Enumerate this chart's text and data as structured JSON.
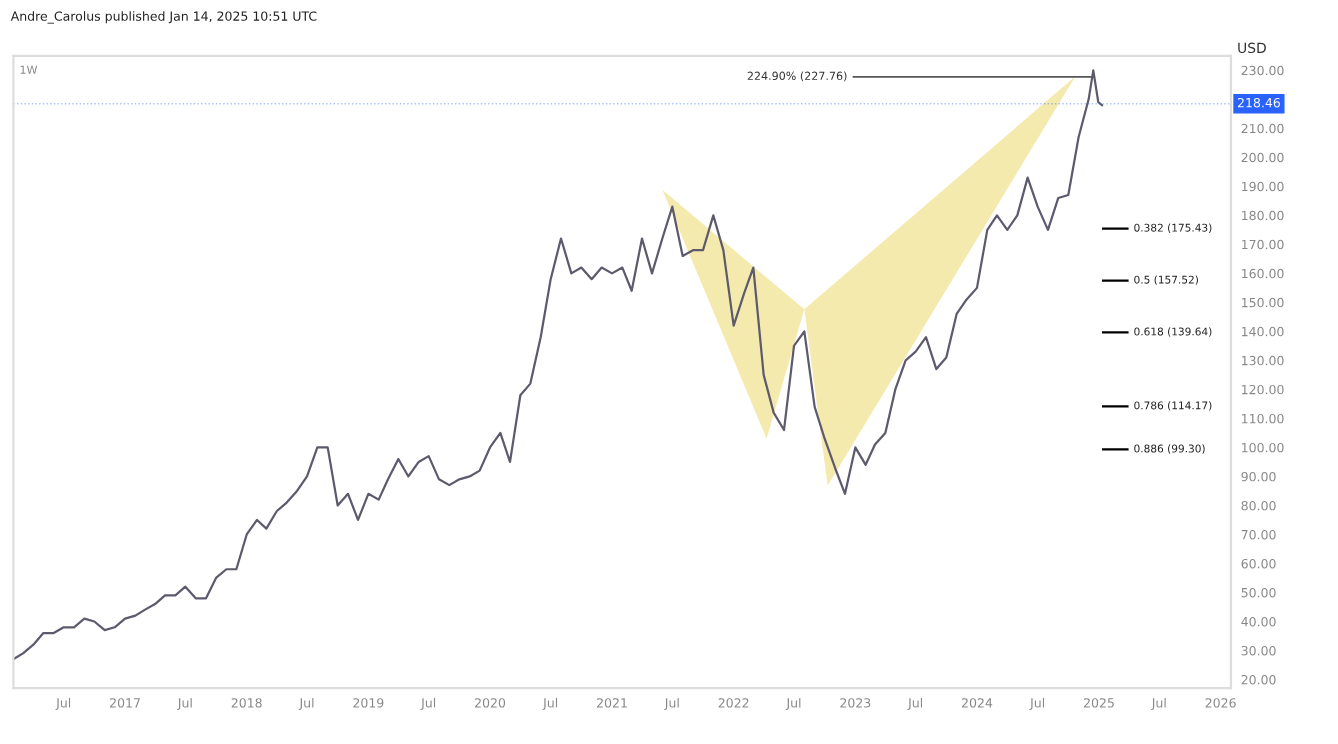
{
  "chart_data": {
    "type": "line",
    "ylabel": "USD",
    "annotations": [
      "Andre_Carolus published Jan 14, 2025 10:51 UTC",
      "1W"
    ],
    "xlim": [
      "2016-02-01",
      "2026-02-01"
    ],
    "xticks": [
      {
        "value": "2016-07-01",
        "label": "Jul"
      },
      {
        "value": "2017-01-01",
        "label": "2017"
      },
      {
        "value": "2017-07-01",
        "label": "Jul"
      },
      {
        "value": "2018-01-01",
        "label": "2018"
      },
      {
        "value": "2018-07-01",
        "label": "Jul"
      },
      {
        "value": "2019-01-01",
        "label": "2019"
      },
      {
        "value": "2019-07-01",
        "label": "Jul"
      },
      {
        "value": "2020-01-01",
        "label": "2020"
      },
      {
        "value": "2020-07-01",
        "label": "Jul"
      },
      {
        "value": "2021-01-01",
        "label": "2021"
      },
      {
        "value": "2021-07-01",
        "label": "Jul"
      },
      {
        "value": "2022-01-01",
        "label": "2022"
      },
      {
        "value": "2022-07-01",
        "label": "Jul"
      },
      {
        "value": "2023-01-01",
        "label": "2023"
      },
      {
        "value": "2023-07-01",
        "label": "Jul"
      },
      {
        "value": "2024-01-01",
        "label": "2024"
      },
      {
        "value": "2024-07-01",
        "label": "Jul"
      },
      {
        "value": "2025-01-01",
        "label": "2025"
      },
      {
        "value": "2025-07-01",
        "label": "Jul"
      },
      {
        "value": "2026-01-01",
        "label": "2026"
      }
    ],
    "ylim": [
      17,
      235
    ],
    "yticks": [
      {
        "value": 20,
        "label": "20.00"
      },
      {
        "value": 30,
        "label": "30.00"
      },
      {
        "value": 40,
        "label": "40.00"
      },
      {
        "value": 50,
        "label": "50.00"
      },
      {
        "value": 60,
        "label": "60.00"
      },
      {
        "value": 70,
        "label": "70.00"
      },
      {
        "value": 80,
        "label": "80.00"
      },
      {
        "value": 90,
        "label": "90.00"
      },
      {
        "value": 100,
        "label": "100.00"
      },
      {
        "value": 110,
        "label": "110.00"
      },
      {
        "value": 120,
        "label": "120.00"
      },
      {
        "value": 130,
        "label": "130.00"
      },
      {
        "value": 140,
        "label": "140.00"
      },
      {
        "value": 150,
        "label": "150.00"
      },
      {
        "value": 160,
        "label": "160.00"
      },
      {
        "value": 170,
        "label": "170.00"
      },
      {
        "value": 180,
        "label": "180.00"
      },
      {
        "value": 190,
        "label": "190.00"
      },
      {
        "value": 200,
        "label": "200.00"
      },
      {
        "value": 210,
        "label": "210.00"
      },
      {
        "value": 230,
        "label": "230.00"
      }
    ],
    "grid": false,
    "series": [
      {
        "type": "area",
        "color": "#f3e6a0",
        "x": [
          "2021-06-01",
          "2022-04-10",
          "2022-08-01"
        ],
        "values": [
          188.8,
          103,
          147.6
        ]
      },
      {
        "type": "area",
        "color": "#f3e6a0",
        "x": [
          "2022-08-01",
          "2022-10-10",
          "2024-10-23"
        ],
        "values": [
          147.6,
          86.8,
          228
        ]
      },
      {
        "color": "#5d5a6e",
        "x": [
          "2016-02",
          "2016-03",
          "2016-04",
          "2016-05",
          "2016-06",
          "2016-07",
          "2016-08",
          "2016-09",
          "2016-10",
          "2016-11",
          "2016-12",
          "2017-01",
          "2017-02",
          "2017-03",
          "2017-04",
          "2017-05",
          "2017-06",
          "2017-07",
          "2017-08",
          "2017-09",
          "2017-10",
          "2017-11",
          "2017-12",
          "2018-01",
          "2018-02",
          "2018-03",
          "2018-04",
          "2018-05",
          "2018-06",
          "2018-07",
          "2018-08",
          "2018-09",
          "2018-10",
          "2018-11",
          "2018-12",
          "2019-01",
          "2019-02",
          "2019-03",
          "2019-04",
          "2019-05",
          "2019-06",
          "2019-07",
          "2019-08",
          "2019-09",
          "2019-10",
          "2019-11",
          "2019-12",
          "2020-01",
          "2020-02",
          "2020-03",
          "2020-04",
          "2020-05",
          "2020-06",
          "2020-07",
          "2020-08",
          "2020-09",
          "2020-10",
          "2020-11",
          "2020-12",
          "2021-01",
          "2021-02",
          "2021-03",
          "2021-04",
          "2021-05",
          "2021-06",
          "2021-07",
          "2021-08",
          "2021-09",
          "2021-10",
          "2021-11",
          "2021-12",
          "2022-01",
          "2022-02",
          "2022-03",
          "2022-04",
          "2022-05",
          "2022-06",
          "2022-07",
          "2022-08",
          "2022-09",
          "2022-10",
          "2022-11",
          "2022-12",
          "2023-01",
          "2023-02",
          "2023-03",
          "2023-04",
          "2023-05",
          "2023-06",
          "2023-07",
          "2023-08",
          "2023-09",
          "2023-10",
          "2023-11",
          "2023-12",
          "2024-01",
          "2024-02",
          "2024-03",
          "2024-04",
          "2024-05",
          "2024-06",
          "2024-07",
          "2024-08",
          "2024-09",
          "2024-10",
          "2024-11",
          "2024-12",
          "2024-12-15",
          "2024-12-30",
          "2025-01-10"
        ],
        "values": [
          27,
          29,
          32,
          36,
          36,
          38,
          38,
          41,
          40,
          37,
          38,
          41,
          42,
          44,
          46,
          49,
          49,
          52,
          48,
          48,
          55,
          58,
          58,
          70,
          75,
          72,
          78,
          81,
          85,
          90,
          100,
          100,
          80,
          84,
          75,
          84,
          82,
          89,
          96,
          90,
          95,
          97,
          89,
          87,
          89,
          90,
          92,
          100,
          105,
          95,
          118,
          122,
          138,
          158,
          172,
          160,
          162,
          158,
          162,
          160,
          162,
          154,
          172,
          160,
          172,
          183,
          166,
          168,
          168,
          180,
          168,
          142,
          153,
          162,
          125,
          112,
          106,
          135,
          140,
          114,
          103,
          93,
          84,
          100,
          94,
          101,
          105,
          120,
          130,
          133,
          138,
          127,
          131,
          146,
          151,
          155,
          175,
          180,
          175,
          180,
          193,
          183,
          175,
          186,
          187,
          207,
          220,
          230,
          219,
          218
        ]
      }
    ],
    "ref_lines": [
      {
        "axis": "y",
        "value": 227.76,
        "label": "224.90% (227.76)",
        "color": "#555555"
      },
      {
        "axis": "y",
        "value": 218.46,
        "label": "218.46",
        "color": "#2962ff",
        "line_style": "dotted"
      },
      {
        "axis": "y",
        "value": 175.43,
        "label": "0.382 (175.43)",
        "color": "#000000"
      },
      {
        "axis": "y",
        "value": 157.52,
        "label": "0.5 (157.52)",
        "color": "#000000"
      },
      {
        "axis": "y",
        "value": 139.64,
        "label": "0.618 (139.64)",
        "color": "#000000"
      },
      {
        "axis": "y",
        "value": 114.17,
        "label": "0.786 (114.17)",
        "color": "#000000"
      },
      {
        "axis": "y",
        "value": 99.3,
        "label": "0.886 (99.30)",
        "color": "#000000"
      }
    ]
  }
}
